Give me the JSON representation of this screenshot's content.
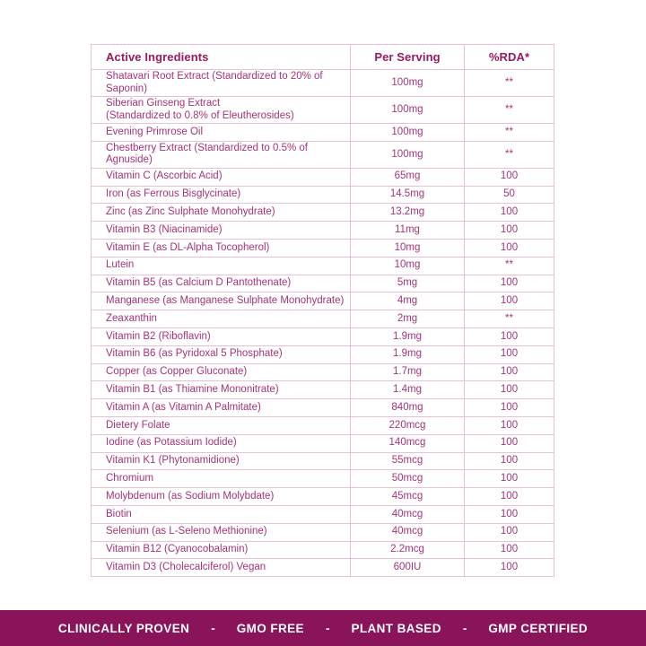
{
  "colors": {
    "footer_background": "#8a1459",
    "header_text": "#9a1a5f",
    "row_text": "#a63378",
    "table_border": "#e9c0d7",
    "footer_text": "#ffffff",
    "page_background": "#ffffff"
  },
  "table": {
    "headers": {
      "ingredient": "Active Ingredients",
      "per_serving": "Per Serving",
      "rda": "%RDA*"
    },
    "rows": [
      {
        "ingredient": "Shatavari Root Extract (Standardized to 20% of Saponin)",
        "per_serving": "100mg",
        "rda": "**"
      },
      {
        "ingredient": "Siberian Ginseng Extract\n(Standardized to 0.8% of Eleutherosides)",
        "per_serving": "100mg",
        "rda": "**"
      },
      {
        "ingredient": "Evening Primrose Oil",
        "per_serving": "100mg",
        "rda": "**"
      },
      {
        "ingredient": "Chestberry Extract (Standardized to 0.5% of Agnuside)",
        "per_serving": "100mg",
        "rda": "**"
      },
      {
        "ingredient": "Vitamin C (Ascorbic Acid)",
        "per_serving": "65mg",
        "rda": "100"
      },
      {
        "ingredient": "Iron (as Ferrous Bisglycinate)",
        "per_serving": "14.5mg",
        "rda": "50"
      },
      {
        "ingredient": "Zinc (as Zinc Sulphate Monohydrate)",
        "per_serving": "13.2mg",
        "rda": "100"
      },
      {
        "ingredient": "Vitamin B3 (Niacinamide)",
        "per_serving": "11mg",
        "rda": "100"
      },
      {
        "ingredient": "Vitamin E (as DL-Alpha Tocopherol)",
        "per_serving": "10mg",
        "rda": "100"
      },
      {
        "ingredient": "Lutein",
        "per_serving": "10mg",
        "rda": "**"
      },
      {
        "ingredient": "Vitamin B5 (as Calcium D Pantothenate)",
        "per_serving": "5mg",
        "rda": "100"
      },
      {
        "ingredient": "Manganese (as Manganese Sulphate Monohydrate)",
        "per_serving": "4mg",
        "rda": "100"
      },
      {
        "ingredient": "Zeaxanthin",
        "per_serving": "2mg",
        "rda": "**"
      },
      {
        "ingredient": "Vitamin B2 (Riboflavin)",
        "per_serving": "1.9mg",
        "rda": "100"
      },
      {
        "ingredient": "Vitamin B6 (as Pyridoxal 5 Phosphate)",
        "per_serving": "1.9mg",
        "rda": "100"
      },
      {
        "ingredient": "Copper (as Copper Gluconate)",
        "per_serving": "1.7mg",
        "rda": "100"
      },
      {
        "ingredient": "Vitamin B1 (as Thiamine Mononitrate)",
        "per_serving": "1.4mg",
        "rda": "100"
      },
      {
        "ingredient": "Vitamin A (as Vitamin A Palmitate)",
        "per_serving": "840mg",
        "rda": "100"
      },
      {
        "ingredient": "Dietery Folate",
        "per_serving": "220mcg",
        "rda": "100"
      },
      {
        "ingredient": "Iodine (as Potassium Iodide)",
        "per_serving": "140mcg",
        "rda": "100"
      },
      {
        "ingredient": "Vitamin K1 (Phytonamidione)",
        "per_serving": "55mcg",
        "rda": "100"
      },
      {
        "ingredient": "Chromium",
        "per_serving": "50mcg",
        "rda": "100"
      },
      {
        "ingredient": "Molybdenum (as Sodium Molybdate)",
        "per_serving": "45mcg",
        "rda": "100"
      },
      {
        "ingredient": "Biotin",
        "per_serving": "40mcg",
        "rda": "100"
      },
      {
        "ingredient": "Selenium (as L-Seleno Methionine)",
        "per_serving": "40mcg",
        "rda": "100"
      },
      {
        "ingredient": "Vitamin B12 (Cyanocobalamin)",
        "per_serving": "2.2mcg",
        "rda": "100"
      },
      {
        "ingredient": "Vitamin D3 (Cholecalciferol) Vegan",
        "per_serving": "600IU",
        "rda": "100"
      }
    ]
  },
  "footer": {
    "separator": "-",
    "items": [
      {
        "label": "CLINICALLY PROVEN"
      },
      {
        "label": "GMO FREE"
      },
      {
        "label": "PLANT BASED"
      },
      {
        "label": "GMP CERTIFIED"
      }
    ]
  }
}
